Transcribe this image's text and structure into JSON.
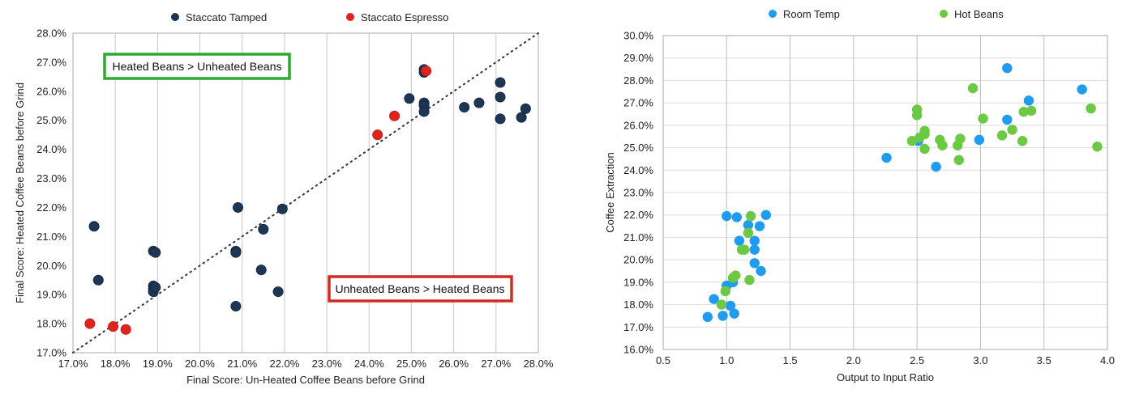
{
  "chart_data": [
    {
      "type": "scatter",
      "xlabel": "Final Score: Un-Heated Coffee Beans before Grind",
      "ylabel": "Final Score: Heated Coffee Beans before Grind",
      "xlim": [
        17,
        28
      ],
      "ylim": [
        17,
        28
      ],
      "x_ticks": [
        "17.0%",
        "18.0%",
        "19.0%",
        "20.0%",
        "21.0%",
        "22.0%",
        "23.0%",
        "24.0%",
        "25.0%",
        "26.0%",
        "27.0%",
        "28.0%"
      ],
      "y_ticks": [
        "17.0%",
        "18.0%",
        "19.0%",
        "20.0%",
        "21.0%",
        "22.0%",
        "23.0%",
        "24.0%",
        "25.0%",
        "26.0%",
        "27.0%",
        "28.0%"
      ],
      "grid": "vertical",
      "legend_position": "top",
      "reference_line": "y = x (dotted)",
      "annotations": [
        {
          "text": "Heated Beans > Unheated Beans",
          "color": "#2ea82e"
        },
        {
          "text": "Unheated Beans > Heated Beans",
          "color": "#d42a22"
        }
      ],
      "series": [
        {
          "name": "Staccato Tamped",
          "color": "#1d3654",
          "points": [
            [
              17.5,
              21.35
            ],
            [
              17.6,
              19.5
            ],
            [
              18.9,
              20.5
            ],
            [
              18.95,
              20.45
            ],
            [
              18.9,
              19.3
            ],
            [
              18.9,
              19.2
            ],
            [
              18.9,
              19.1
            ],
            [
              18.95,
              19.25
            ],
            [
              20.9,
              22.0
            ],
            [
              20.85,
              20.5
            ],
            [
              20.85,
              20.45
            ],
            [
              20.85,
              18.6
            ],
            [
              21.5,
              21.25
            ],
            [
              21.45,
              19.85
            ],
            [
              21.85,
              19.1
            ],
            [
              21.95,
              21.95
            ],
            [
              24.95,
              25.75
            ],
            [
              25.3,
              26.75
            ],
            [
              25.3,
              26.65
            ],
            [
              25.3,
              25.6
            ],
            [
              25.3,
              25.5
            ],
            [
              25.3,
              25.3
            ],
            [
              26.25,
              25.45
            ],
            [
              26.6,
              25.6
            ],
            [
              27.1,
              26.3
            ],
            [
              27.1,
              25.8
            ],
            [
              27.1,
              25.05
            ],
            [
              27.6,
              25.1
            ],
            [
              27.7,
              25.4
            ]
          ]
        },
        {
          "name": "Staccato Espresso",
          "color": "#e0231c",
          "points": [
            [
              17.4,
              18.0
            ],
            [
              17.95,
              17.9
            ],
            [
              18.25,
              17.8
            ],
            [
              24.2,
              24.5
            ],
            [
              24.6,
              25.15
            ],
            [
              25.35,
              26.7
            ]
          ]
        }
      ]
    },
    {
      "type": "scatter",
      "xlabel": "Output to Input Ratio",
      "ylabel": "Coffee Extraction",
      "xlim": [
        0.5,
        4.0
      ],
      "ylim": [
        16,
        30
      ],
      "x_ticks": [
        "0.5",
        "1.0",
        "1.5",
        "2.0",
        "2.5",
        "3.0",
        "3.5",
        "4.0"
      ],
      "y_ticks": [
        "16.0%",
        "17.0%",
        "18.0%",
        "19.0%",
        "20.0%",
        "21.0%",
        "22.0%",
        "23.0%",
        "24.0%",
        "25.0%",
        "26.0%",
        "27.0%",
        "28.0%",
        "29.0%",
        "30.0%"
      ],
      "grid": "both",
      "legend_position": "top",
      "series": [
        {
          "name": "Room Temp",
          "color": "#1f9bef",
          "points": [
            [
              0.85,
              17.45
            ],
            [
              0.9,
              18.25
            ],
            [
              0.97,
              17.5
            ],
            [
              1.03,
              17.95
            ],
            [
              1.06,
              17.6
            ],
            [
              1.0,
              18.85
            ],
            [
              1.05,
              19.0
            ],
            [
              1.0,
              21.95
            ],
            [
              1.08,
              21.9
            ],
            [
              1.1,
              20.85
            ],
            [
              1.17,
              21.55
            ],
            [
              1.22,
              20.85
            ],
            [
              1.22,
              20.45
            ],
            [
              1.22,
              19.85
            ],
            [
              1.26,
              21.5
            ],
            [
              1.27,
              19.5
            ],
            [
              1.31,
              22.0
            ],
            [
              2.26,
              24.55
            ],
            [
              2.51,
              25.3
            ],
            [
              2.65,
              24.15
            ],
            [
              2.99,
              25.35
            ],
            [
              3.21,
              28.55
            ],
            [
              3.21,
              26.25
            ],
            [
              3.38,
              27.1
            ],
            [
              3.8,
              27.6
            ]
          ]
        },
        {
          "name": "Hot Beans",
          "color": "#6cc943",
          "points": [
            [
              0.96,
              18.0
            ],
            [
              0.99,
              18.6
            ],
            [
              1.05,
              19.2
            ],
            [
              1.07,
              19.3
            ],
            [
              1.12,
              20.45
            ],
            [
              1.14,
              20.45
            ],
            [
              1.17,
              21.2
            ],
            [
              1.18,
              19.1
            ],
            [
              1.19,
              21.95
            ],
            [
              2.46,
              25.3
            ],
            [
              2.5,
              26.7
            ],
            [
              2.5,
              26.45
            ],
            [
              2.52,
              25.45
            ],
            [
              2.56,
              25.6
            ],
            [
              2.56,
              25.75
            ],
            [
              2.56,
              24.95
            ],
            [
              2.68,
              25.35
            ],
            [
              2.7,
              25.1
            ],
            [
              2.82,
              25.1
            ],
            [
              2.83,
              24.45
            ],
            [
              2.84,
              25.4
            ],
            [
              2.94,
              27.65
            ],
            [
              3.02,
              26.3
            ],
            [
              3.17,
              25.55
            ],
            [
              3.25,
              25.8
            ],
            [
              3.33,
              25.3
            ],
            [
              3.34,
              26.6
            ],
            [
              3.4,
              26.65
            ],
            [
              3.87,
              26.75
            ],
            [
              3.92,
              25.05
            ]
          ]
        }
      ]
    }
  ]
}
